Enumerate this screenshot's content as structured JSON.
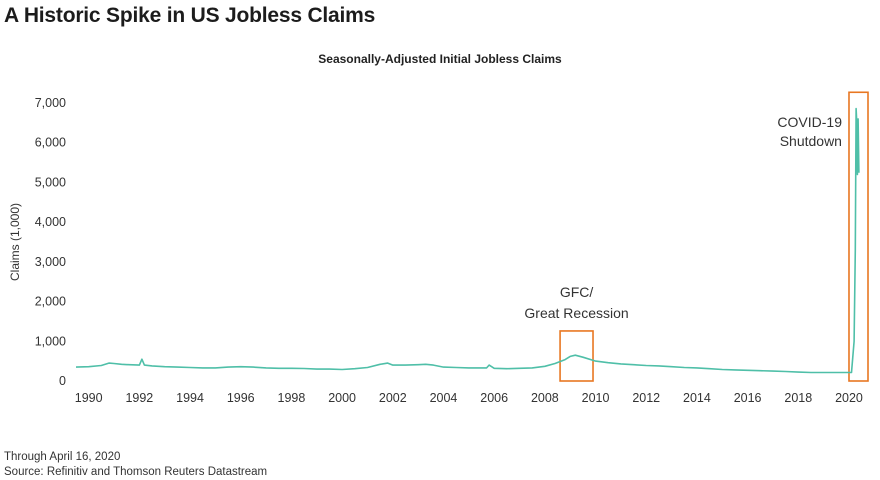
{
  "page": {
    "headline": "A Historic Spike in US Jobless Claims",
    "footnote": "Through April 16, 2020",
    "source": "Source: Refinitiv and Thomson Reuters Datastream"
  },
  "colors": {
    "series": "#4fbfa8",
    "highlight": "#e87722",
    "text": "#333333"
  },
  "chart_data": {
    "type": "line",
    "title": "Seasonally-Adjusted Initial Jobless Claims",
    "ylabel": "Claims (1,000)",
    "xlabel": "",
    "xlim": [
      1989.5,
      2020.75
    ],
    "ylim": [
      0,
      7000
    ],
    "x_ticks": [
      1990,
      1992,
      1994,
      1996,
      1998,
      2000,
      2002,
      2004,
      2006,
      2008,
      2010,
      2012,
      2014,
      2016,
      2018,
      2020
    ],
    "x_tick_labels": [
      "1990",
      "1992",
      "1994",
      "1996",
      "1998",
      "2000",
      "2002",
      "2004",
      "2006",
      "2008",
      "2010",
      "2012",
      "2014",
      "2016",
      "2018",
      "2020"
    ],
    "y_ticks": [
      0,
      1000,
      2000,
      3000,
      4000,
      5000,
      6000,
      7000
    ],
    "y_tick_labels": [
      "0",
      "1,000",
      "2,000",
      "3,000",
      "4,000",
      "5,000",
      "6,000",
      "7,000"
    ],
    "grid": false,
    "series": [
      {
        "x": [
          1989.5,
          1990.0,
          1990.5,
          1990.8,
          1991.0,
          1991.3,
          1991.6,
          1992.0,
          1992.1,
          1992.2,
          1992.5,
          1993.0,
          1993.5,
          1994.0,
          1994.5,
          1995.0,
          1995.5,
          1996.0,
          1996.5,
          1997.0,
          1997.5,
          1998.0,
          1998.5,
          1999.0,
          1999.5,
          2000.0,
          2000.5,
          2001.0,
          2001.5,
          2001.8,
          2002.0,
          2002.5,
          2003.0,
          2003.3,
          2003.6,
          2004.0,
          2004.5,
          2005.0,
          2005.7,
          2005.8,
          2006.0,
          2006.5,
          2007.0,
          2007.5,
          2008.0,
          2008.4,
          2008.8,
          2009.0,
          2009.2,
          2009.5,
          2010.0,
          2010.5,
          2011.0,
          2011.5,
          2012.0,
          2012.5,
          2013.0,
          2013.5,
          2014.0,
          2014.5,
          2015.0,
          2015.5,
          2016.0,
          2016.5,
          2017.0,
          2017.5,
          2018.0,
          2018.5,
          2019.0,
          2019.5,
          2019.9,
          2020.1,
          2020.2,
          2020.25,
          2020.28,
          2020.3,
          2020.33,
          2020.36,
          2020.39
        ],
        "values": [
          350,
          360,
          390,
          450,
          440,
          420,
          410,
          400,
          550,
          400,
          380,
          360,
          350,
          340,
          330,
          330,
          350,
          360,
          350,
          330,
          320,
          320,
          315,
          300,
          300,
          290,
          310,
          340,
          420,
          450,
          400,
          400,
          410,
          420,
          400,
          350,
          340,
          330,
          330,
          400,
          320,
          310,
          320,
          330,
          370,
          440,
          540,
          620,
          650,
          600,
          500,
          460,
          430,
          410,
          390,
          380,
          360,
          340,
          330,
          310,
          290,
          280,
          270,
          260,
          250,
          240,
          225,
          215,
          215,
          215,
          215,
          215,
          1000,
          3300,
          6860,
          6600,
          5200,
          6600,
          5245
        ]
      }
    ],
    "annotations": [
      {
        "label_lines": [
          "GFC/",
          "Great Recession"
        ],
        "x_range": [
          2008.6,
          2009.9
        ],
        "y_range": [
          0,
          1260
        ]
      },
      {
        "label_lines": [
          "COVID-19",
          "Shutdown"
        ],
        "x_range": [
          2020.0,
          2020.75
        ],
        "y_range": [
          0,
          7270
        ]
      }
    ]
  }
}
